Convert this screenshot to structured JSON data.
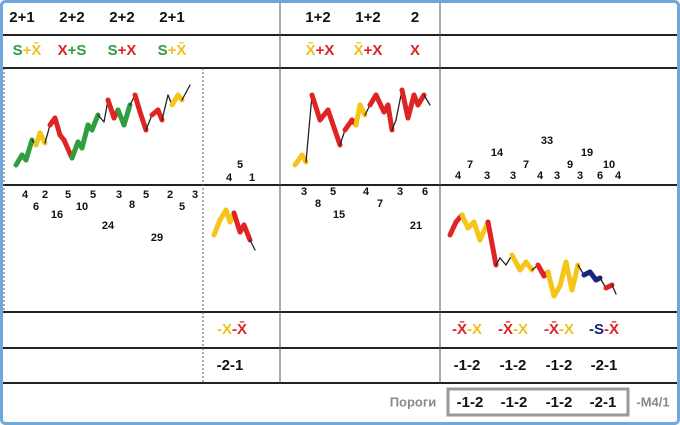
{
  "top_row": {
    "left": [
      "2+1",
      "2+2",
      "2+2",
      "2+1"
    ],
    "right": [
      "1+2",
      "1+2",
      "2"
    ]
  },
  "formula_row": {
    "left": [
      [
        {
          "text": "S",
          "color": "#2e9e3e"
        },
        {
          "text": "+X̄",
          "color": "#f0c020"
        }
      ],
      [
        {
          "text": "X",
          "color": "#e02424"
        },
        {
          "text": "+S",
          "color": "#2e9e3e"
        }
      ],
      [
        {
          "text": "S",
          "color": "#2e9e3e"
        },
        {
          "text": "+X",
          "color": "#e02424"
        }
      ],
      [
        {
          "text": "S",
          "color": "#2e9e3e"
        },
        {
          "text": "+X̄",
          "color": "#f0c020"
        }
      ]
    ],
    "right": [
      [
        {
          "text": "X̄",
          "color": "#f0c020"
        },
        {
          "text": "+X",
          "color": "#e02424"
        }
      ],
      [
        {
          "text": "X̄",
          "color": "#f0c020"
        },
        {
          "text": "+X",
          "color": "#e02424"
        }
      ],
      [
        {
          "text": "X",
          "color": "#e02424"
        }
      ]
    ]
  },
  "counts": {
    "left": [
      4,
      6,
      2,
      16,
      5,
      10,
      5,
      24,
      3,
      8,
      5,
      29,
      2,
      5,
      3
    ],
    "middle": [
      4,
      5,
      1
    ],
    "center": [
      3,
      8,
      5,
      15,
      4,
      7,
      3,
      21,
      6
    ],
    "right": [
      4,
      7,
      3,
      14,
      3,
      7,
      4,
      33,
      3,
      9,
      3,
      19,
      6,
      10,
      4
    ]
  },
  "bottom_formulas": {
    "middle": [
      [
        {
          "text": "-X",
          "color": "#f0c020"
        },
        {
          "text": "-X̄",
          "color": "#e02424"
        }
      ]
    ],
    "right": [
      [
        {
          "text": "-X̄",
          "color": "#e02424"
        },
        {
          "text": "-X",
          "color": "#f0c020"
        }
      ],
      [
        {
          "text": "-X̄",
          "color": "#e02424"
        },
        {
          "text": "-X",
          "color": "#f0c020"
        }
      ],
      [
        {
          "text": "-X̄",
          "color": "#e02424"
        },
        {
          "text": "-X",
          "color": "#f0c020"
        }
      ],
      [
        {
          "text": "-S",
          "color": "#1a237e"
        },
        {
          "text": "-X̄",
          "color": "#e02424"
        }
      ]
    ]
  },
  "bottom_codes": {
    "middle": [
      "-2-1"
    ],
    "right": [
      "-1-2",
      "-1-2",
      "-1-2",
      "-2-1"
    ]
  },
  "footer": {
    "label": "Пороги",
    "codes": [
      "-1-2",
      "-1-2",
      "-1-2",
      "-2-1"
    ],
    "suffix": "-M4/1"
  }
}
